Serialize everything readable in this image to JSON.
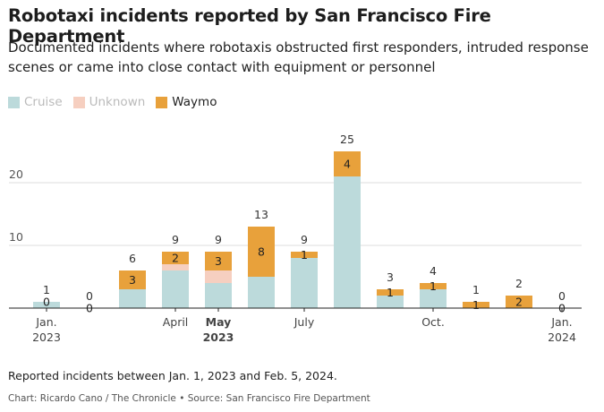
{
  "title": "Robotaxi incidents reported by San Francisco Fire Department",
  "subtitle": "Documented incidents where robotaxis obstructed first responders, intruded response scenes or came into close contact with equipment or personnel",
  "legend": [
    {
      "name": "Cruise",
      "color": "#bcdadb",
      "faded": true
    },
    {
      "name": "Unknown",
      "color": "#f6cfc0",
      "faded": true
    },
    {
      "name": "Waymo",
      "color": "#e8a13b",
      "faded": false
    }
  ],
  "chart_data": {
    "type": "bar",
    "stacked": true,
    "categories": [
      "Jan. 2023",
      "Feb. 2023",
      "Mar. 2023",
      "Apr. 2023",
      "May 2023",
      "Jun. 2023",
      "Jul. 2023",
      "Aug. 2023",
      "Sep. 2023",
      "Oct. 2023",
      "Nov. 2023",
      "Dec. 2023",
      "Jan. 2024"
    ],
    "series": [
      {
        "name": "Cruise",
        "color": "#bcdadb",
        "values": [
          1,
          0,
          3,
          6,
          4,
          5,
          8,
          21,
          2,
          3,
          0,
          0,
          0
        ]
      },
      {
        "name": "Unknown",
        "color": "#f6cfc0",
        "values": [
          0,
          0,
          0,
          1,
          2,
          0,
          0,
          0,
          0,
          0,
          0,
          0,
          0
        ]
      },
      {
        "name": "Waymo",
        "color": "#e8a13b",
        "values": [
          0,
          0,
          3,
          2,
          3,
          8,
          1,
          4,
          1,
          1,
          1,
          2,
          0
        ]
      }
    ],
    "totals": [
      1,
      0,
      6,
      9,
      9,
      13,
      9,
      25,
      3,
      4,
      1,
      2,
      0
    ],
    "total_labels": [
      "1",
      "0",
      "6",
      "9",
      "9",
      "13",
      "9",
      "25",
      "3",
      "4",
      "1",
      "2",
      "0"
    ],
    "waymo_labels": [
      "0",
      "0",
      "3",
      "2",
      "3",
      "8",
      "1",
      "4",
      "1",
      "1",
      "1",
      "2",
      "0"
    ],
    "x_tick_labels": [
      {
        "index": 0,
        "line1": "Jan.",
        "line2": "2023",
        "bold": false
      },
      {
        "index": 3,
        "line1": "April",
        "line2": "",
        "bold": false
      },
      {
        "index": 4,
        "line1": "May",
        "line2": "2023",
        "bold": true
      },
      {
        "index": 6,
        "line1": "July",
        "line2": "",
        "bold": false
      },
      {
        "index": 9,
        "line1": "Oct.",
        "line2": "",
        "bold": false
      },
      {
        "index": 12,
        "line1": "Jan.",
        "line2": "2024",
        "bold": false
      }
    ],
    "y_ticks": [
      10,
      20
    ],
    "ylim": [
      0,
      25
    ],
    "grid": true
  },
  "note": "Reported incidents between Jan. 1, 2023 and Feb. 5, 2024.",
  "credit": "Chart: Ricardo Cano / The Chronicle • Source: San Francisco Fire Department"
}
